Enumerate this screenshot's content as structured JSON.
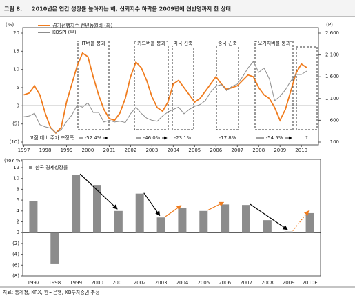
{
  "header": {
    "label": "그림 8.",
    "title": "2010년은 연간 성장률 높아지는 해, 신뢰지수 하락을 2009년에 선반영까지 한 상태"
  },
  "source": "자료: 통계청, KRX, 한국은행, KB투자증권 추정",
  "chart_data": [
    {
      "type": "line",
      "y_label": "(%)",
      "y2_label": "(P)",
      "x": [
        1997,
        1997.25,
        1997.5,
        1997.75,
        1998,
        1998.25,
        1998.5,
        1998.75,
        1999,
        1999.25,
        1999.5,
        1999.75,
        2000,
        2000.25,
        2000.5,
        2000.75,
        2001,
        2001.25,
        2001.5,
        2001.75,
        2002,
        2002.25,
        2002.5,
        2002.75,
        2003,
        2003.25,
        2003.5,
        2003.75,
        2004,
        2004.25,
        2004.5,
        2004.75,
        2005,
        2005.25,
        2005.5,
        2005.75,
        2006,
        2006.25,
        2006.5,
        2006.75,
        2007,
        2007.25,
        2007.5,
        2007.75,
        2008,
        2008.25,
        2008.5,
        2008.75,
        2009,
        2009.25,
        2009.5,
        2009.75,
        2010,
        2010.25
      ],
      "series": [
        {
          "name": "경기선행지수 전년동월비 (좌)",
          "color": "#f07c1e",
          "values": [
            3,
            3.5,
            5.5,
            3,
            -2,
            -6,
            -7.5,
            -6,
            1,
            6,
            11,
            14.5,
            13.5,
            8,
            3,
            -1,
            -3.5,
            -4,
            -2,
            2,
            8,
            12,
            10.5,
            7,
            2.5,
            -0.5,
            -1.5,
            1,
            6,
            7,
            5,
            3,
            1,
            2,
            4,
            6,
            8,
            6,
            4.5,
            5,
            5.5,
            7,
            8.5,
            8,
            5,
            3,
            2,
            -0.5,
            -4,
            -1,
            4,
            9,
            11.5,
            10.5
          ]
        },
        {
          "name": "KOSPI (우)",
          "color": "#8c8c8c",
          "axis": "y2",
          "values": [
            680,
            700,
            760,
            500,
            450,
            420,
            310,
            380,
            570,
            720,
            950,
            900,
            1000,
            780,
            780,
            560,
            600,
            560,
            580,
            550,
            750,
            900,
            760,
            650,
            600,
            580,
            700,
            790,
            850,
            900,
            750,
            850,
            920,
            960,
            1050,
            1250,
            1380,
            1420,
            1280,
            1380,
            1430,
            1600,
            1800,
            1950,
            1700,
            1800,
            1550,
            1050,
            1150,
            1300,
            1500,
            1650,
            1650,
            1730
          ]
        }
      ],
      "xlim": [
        1996.95,
        2010.8
      ],
      "xticks": [
        1997,
        1998,
        1999,
        2000,
        2001,
        2002,
        2003,
        2004,
        2005,
        2006,
        2007,
        2008,
        2009,
        2010
      ],
      "ylim": [
        -10,
        20
      ],
      "yticks": [
        {
          "value": -10,
          "label": "(10)"
        },
        {
          "value": -5,
          "label": "(5)"
        },
        0,
        5,
        10,
        15,
        20
      ],
      "y2lim": [
        100,
        2600
      ],
      "y2ticks": [
        100,
        600,
        {
          "value": 1100,
          "label": "1,100"
        },
        {
          "value": 1600,
          "label": "1,600"
        },
        {
          "value": 2100,
          "label": "2,100"
        },
        {
          "value": 2600,
          "label": "2,600"
        }
      ],
      "annotations": [
        "IT버블 붕괴",
        "카드버블 붕괴",
        "미국 긴축",
        "중국 긴축",
        "모기지버블 붕괴"
      ],
      "notes": [
        {
          "text": "고점 대비 주가 조정폭",
          "color": "#000000"
        },
        {
          "text": "-52.4%",
          "color": "#000000"
        },
        {
          "text": "-46.0%",
          "color": "#000000"
        },
        {
          "text": "-23.1%",
          "color": "#f07c1e"
        },
        {
          "text": "-17.8%",
          "color": "#f07c1e"
        },
        {
          "text": "-54.5%",
          "color": "#000000"
        },
        {
          "text": "?",
          "color": "#f07c1e"
        }
      ]
    },
    {
      "type": "bar",
      "y_label": "(YoY %)",
      "categories": [
        "1997",
        "1998",
        "1999",
        "2000",
        "2001",
        "2002",
        "2003",
        "2004",
        "2005",
        "2006",
        "2007",
        "2008",
        "2009",
        "2010E"
      ],
      "series": [
        {
          "name": "한국 경제성장률",
          "color": "#8c8c8c",
          "values": [
            5.8,
            -5.7,
            10.7,
            8.8,
            4.0,
            7.2,
            2.8,
            4.6,
            4.0,
            5.2,
            5.1,
            2.3,
            0.2,
            3.6
          ]
        }
      ],
      "ylim": [
        -8,
        12
      ],
      "yticks": [
        {
          "value": -8,
          "label": "(8)"
        },
        {
          "value": -6,
          "label": "(6)"
        },
        {
          "value": -4,
          "label": "(4)"
        },
        {
          "value": -2,
          "label": "(2)"
        },
        0,
        2,
        4,
        6,
        8,
        10,
        12
      ]
    }
  ]
}
